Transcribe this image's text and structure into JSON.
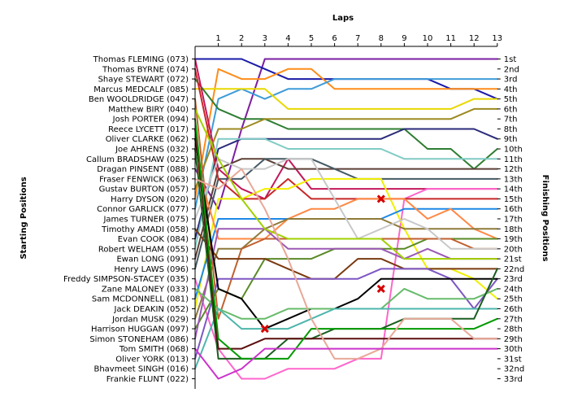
{
  "chart_data": {
    "type": "line",
    "title": "",
    "xlabel": "Laps",
    "ylabel_left": "Starting Positions",
    "ylabel_right": "Finishing Positions",
    "x": [
      1,
      2,
      3,
      4,
      5,
      6,
      7,
      8,
      9,
      10,
      11,
      12,
      13
    ],
    "x_tick_labels": [
      "1",
      "2",
      "3",
      "4",
      "5",
      "6",
      "7",
      "8",
      "9",
      "10",
      "11",
      "12",
      "13"
    ],
    "positions": 33,
    "grid": false,
    "drivers": [
      "Thomas FLEMING (073)",
      "Thomas BYRNE (074)",
      "Shaye STEWART (072)",
      "Marcus MEDCALF (085)",
      "Ben WOOLDRIDGE (047)",
      "Matthew BIRY (040)",
      "Josh PORTER (094)",
      "Reece LYCETT (017)",
      "Oliver CLARKE (062)",
      "Joe AHRENS (032)",
      "Callum BRADSHAW (025)",
      "Dragan PINSENT (088)",
      "Fraser FENWICK (063)",
      "Gustav BURTON (057)",
      "Harry DYSON (020)",
      "Connor GARLICK (077)",
      "James TURNER (075)",
      "Timothy AMADI (058)",
      "Evan COOK (084)",
      "Robert WELHAM (055)",
      "Ewan LONG (091)",
      "Henry LAWS (096)",
      "Freddy SIMPSON-STACEY (035)",
      "Zane MALONEY (033)",
      "Sam MCDONNELL (081)",
      "Jack DEAKIN (052)",
      "Jordan MUSK (029)",
      "Harrison HUGGAN (097)",
      "Simon STONEHAM (086)",
      "Tom SMITH (068)",
      "Oliver YORK (013)",
      "Bhavmeet SINGH (016)",
      "Frankie FLUNT (022)"
    ],
    "finishing_labels": [
      "1st",
      "2nd",
      "3rd",
      "4th",
      "5th",
      "6th",
      "7th",
      "8th",
      "9th",
      "10th",
      "11th",
      "12th",
      "13th",
      "14th",
      "15th",
      "16th",
      "17th",
      "18th",
      "19th",
      "20th",
      "21st",
      "22nd",
      "23rd",
      "24th",
      "25th",
      "26th",
      "27th",
      "28th",
      "29th",
      "30th",
      "31st",
      "32nd",
      "33rd"
    ],
    "series": [
      {
        "color": "#7b1fa2",
        "start": 12,
        "positions": [
          16,
          8,
          1,
          1,
          1,
          1,
          1,
          1,
          1,
          1,
          1,
          1,
          1
        ]
      },
      {
        "color": "#1a1aa8",
        "start": 1,
        "positions": [
          1,
          1,
          2,
          3,
          3,
          3,
          3,
          3,
          3,
          3,
          4,
          4,
          5
        ]
      },
      {
        "color": "#ff8c1a",
        "start": 15,
        "positions": [
          2,
          3,
          3,
          2,
          2,
          4,
          4,
          4,
          4,
          4,
          4,
          4,
          4
        ]
      },
      {
        "color": "#3e9cd8",
        "start": 16,
        "positions": [
          5,
          4,
          5,
          4,
          4,
          3,
          3,
          3,
          3,
          3,
          3,
          3,
          3
        ]
      },
      {
        "color": "#e8d800",
        "start": 4,
        "positions": [
          4,
          4,
          4,
          6,
          6,
          6,
          6,
          6,
          6,
          6,
          6,
          5,
          5
        ]
      },
      {
        "color": "#2e7d32",
        "start": 3,
        "positions": [
          6,
          7,
          7,
          8,
          8,
          8,
          8,
          8,
          8,
          10,
          10,
          12,
          10
        ]
      },
      {
        "color": "#c2185b",
        "start": 1,
        "positions": [
          12,
          14,
          15,
          11,
          14,
          14,
          14,
          14,
          14,
          14,
          14,
          14,
          14
        ]
      },
      {
        "color": "#2a2a7a",
        "start": 19,
        "positions": [
          10,
          9,
          9,
          9,
          9,
          9,
          9,
          9,
          8,
          8,
          8,
          8,
          9
        ]
      },
      {
        "color": "#80cbc4",
        "start": 20,
        "positions": [
          9,
          9,
          9,
          10,
          10,
          10,
          10,
          10,
          11,
          11,
          11,
          11,
          11
        ]
      },
      {
        "color": "#5d4037",
        "start": 21,
        "positions": [
          12,
          11,
          11,
          12,
          12,
          12,
          12,
          12,
          12,
          12,
          12,
          12,
          12
        ]
      },
      {
        "color": "#455a64",
        "start": 22,
        "positions": [
          13,
          13,
          11,
          11,
          11,
          12,
          13,
          13,
          13,
          13,
          13,
          13,
          13
        ]
      },
      {
        "color": "#9c8a20",
        "start": 14,
        "positions": [
          8,
          8,
          7,
          7,
          7,
          7,
          7,
          7,
          7,
          7,
          7,
          6,
          6
        ]
      },
      {
        "color": "#ff66cc",
        "start": 23,
        "positions": [
          30,
          33,
          33,
          32,
          32,
          32,
          31,
          31,
          15,
          14,
          14,
          14,
          14
        ]
      },
      {
        "color": "#c62828",
        "start": 2,
        "positions": [
          13,
          15,
          15,
          13,
          15,
          15,
          15,
          15,
          15,
          15,
          15,
          15,
          15
        ]
      },
      {
        "color": "#f0f000",
        "start": 26,
        "positions": [
          15,
          15,
          14,
          14,
          13,
          13,
          13,
          13,
          18,
          22,
          22,
          23,
          25
        ]
      },
      {
        "color": "#1e88e5",
        "start": 25,
        "positions": [
          17,
          17,
          17,
          17,
          17,
          17,
          17,
          17,
          16,
          16,
          16,
          16,
          16
        ]
      },
      {
        "color": "#ff8844",
        "start": 11,
        "positions": [
          19,
          19,
          19,
          17,
          16,
          16,
          15,
          15,
          15,
          17,
          16,
          18,
          19
        ]
      },
      {
        "color": "#8e7a3a",
        "start": 27,
        "positions": [
          20,
          20,
          18,
          17,
          17,
          17,
          17,
          17,
          18,
          18,
          18,
          18,
          18
        ]
      },
      {
        "color": "#5a8a28",
        "start": 28,
        "positions": [
          24,
          25,
          21,
          21,
          21,
          20,
          20,
          20,
          20,
          19,
          19,
          19,
          19
        ]
      },
      {
        "color": "#c06030",
        "start": 5,
        "positions": [
          27,
          20,
          19,
          19,
          19,
          19,
          19,
          19,
          19,
          19,
          19,
          20,
          20
        ]
      },
      {
        "color": "#9b59b6",
        "start": 29,
        "positions": [
          18,
          18,
          18,
          20,
          20,
          20,
          20,
          20,
          21,
          20,
          21,
          21,
          21
        ]
      },
      {
        "color": "#c8c8c8",
        "start": 17,
        "positions": [
          11,
          12,
          12,
          11,
          11,
          15,
          19,
          18,
          17,
          18,
          20,
          20,
          20
        ]
      },
      {
        "color": "#a0d000",
        "start": 6,
        "positions": [
          11,
          15,
          18,
          19,
          19,
          19,
          19,
          19,
          21,
          21,
          21,
          21,
          21
        ]
      },
      {
        "color": "#7a3a10",
        "start": 18,
        "positions": [
          21,
          21,
          21,
          22,
          23,
          23,
          21,
          21,
          22,
          22,
          22,
          22,
          22
        ]
      },
      {
        "color": "#7e57c2",
        "start": 31,
        "positions": [
          23,
          23,
          23,
          23,
          23,
          23,
          23,
          22,
          22,
          22,
          23,
          26,
          23
        ]
      },
      {
        "color": "#000000",
        "start": 9,
        "positions": [
          24,
          25,
          28,
          27,
          26,
          26,
          25,
          23,
          23,
          23,
          23,
          23,
          23
        ]
      },
      {
        "color": "#66bb6a",
        "start": 24,
        "positions": [
          26,
          27,
          27,
          26,
          26,
          26,
          26,
          26,
          24,
          25,
          25,
          25,
          24
        ]
      },
      {
        "color": "#4db6ac",
        "start": 32,
        "positions": [
          26,
          28,
          28,
          28,
          27,
          26,
          26,
          26,
          26,
          26,
          26,
          26,
          26
        ]
      },
      {
        "color": "#1b5e20",
        "start": 10,
        "positions": [
          31,
          31,
          31,
          29,
          29,
          28,
          28,
          28,
          27,
          27,
          27,
          27,
          22
        ]
      },
      {
        "color": "#5b0f0f",
        "start": 8,
        "positions": [
          30,
          30,
          29,
          29,
          29,
          29,
          29,
          29,
          29,
          29,
          29,
          29,
          29
        ]
      },
      {
        "color": "#009900",
        "start": 7,
        "positions": [
          29,
          31,
          31,
          31,
          28,
          28,
          28,
          28,
          28,
          28,
          28,
          28,
          27
        ]
      },
      {
        "color": "#e8a898",
        "start": 13,
        "positions": [
          14,
          12,
          16,
          21,
          27,
          31,
          31,
          30,
          27,
          27,
          27,
          29,
          29
        ]
      },
      {
        "color": "#cc33cc",
        "start": 30,
        "positions": [
          33,
          32,
          30,
          30,
          30,
          30,
          30,
          30,
          30,
          30,
          30,
          30,
          30
        ]
      }
    ],
    "retirements": [
      {
        "lap": 3,
        "position": 28
      },
      {
        "lap": 8,
        "position": 15
      },
      {
        "lap": 8,
        "position": 24
      }
    ]
  }
}
